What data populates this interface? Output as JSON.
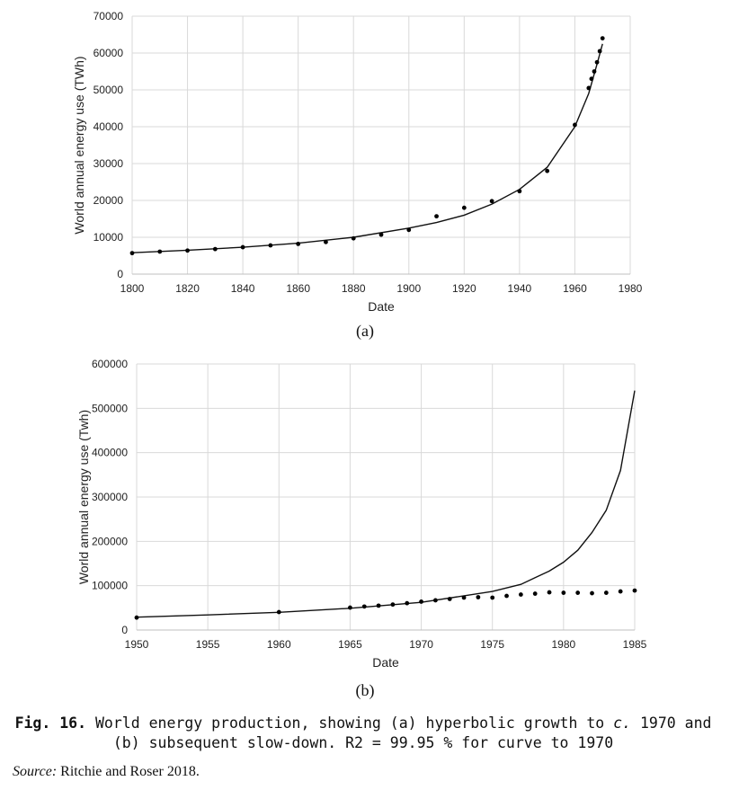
{
  "chart_data": [
    {
      "type": "scatter",
      "panel_label": "(a)",
      "xlabel": "Date",
      "ylabel": "World annual energy use (TWh)",
      "xlim": [
        1800,
        1980
      ],
      "ylim": [
        0,
        70000
      ],
      "x_ticks": [
        1800,
        1820,
        1840,
        1860,
        1880,
        1900,
        1920,
        1940,
        1960,
        1980
      ],
      "y_ticks": [
        0,
        10000,
        20000,
        30000,
        40000,
        50000,
        60000,
        70000
      ],
      "grid": true,
      "points": {
        "x": [
          1800,
          1810,
          1820,
          1830,
          1840,
          1850,
          1860,
          1870,
          1880,
          1890,
          1900,
          1910,
          1920,
          1930,
          1940,
          1950,
          1960,
          1965,
          1966,
          1967,
          1968,
          1969,
          1970
        ],
        "y": [
          5700,
          6100,
          6400,
          6800,
          7300,
          7800,
          8200,
          8700,
          9700,
          10700,
          12000,
          15700,
          18000,
          19800,
          22500,
          28000,
          40500,
          50500,
          53000,
          55000,
          57500,
          60500,
          64000
        ]
      },
      "fit_curve": {
        "x": [
          1800,
          1820,
          1840,
          1860,
          1880,
          1900,
          1910,
          1920,
          1930,
          1940,
          1950,
          1960,
          1965,
          1968,
          1970
        ],
        "y": [
          5800,
          6500,
          7300,
          8400,
          10000,
          12500,
          14000,
          16000,
          19000,
          23000,
          29000,
          40000,
          49000,
          57000,
          62500
        ]
      }
    },
    {
      "type": "scatter",
      "panel_label": "(b)",
      "xlabel": "Date",
      "ylabel": "World annual energy use (Twh)",
      "xlim": [
        1950,
        1985
      ],
      "ylim": [
        0,
        600000
      ],
      "x_ticks": [
        1950,
        1955,
        1960,
        1965,
        1970,
        1975,
        1980,
        1985
      ],
      "y_ticks": [
        0,
        100000,
        200000,
        300000,
        400000,
        500000,
        600000
      ],
      "grid": true,
      "points": {
        "x": [
          1950,
          1960,
          1965,
          1966,
          1967,
          1968,
          1969,
          1970,
          1971,
          1972,
          1973,
          1974,
          1975,
          1976,
          1977,
          1978,
          1979,
          1980,
          1981,
          1982,
          1983,
          1984,
          1985
        ],
        "y": [
          28000,
          40500,
          50500,
          53000,
          55000,
          57500,
          60500,
          64000,
          67000,
          70000,
          73000,
          74000,
          73000,
          77000,
          80000,
          82000,
          85000,
          84000,
          84000,
          83000,
          84000,
          87000,
          89000
        ]
      },
      "fit_curve": {
        "x": [
          1950,
          1955,
          1960,
          1965,
          1970,
          1975,
          1977,
          1978,
          1979,
          1980,
          1981,
          1982,
          1983,
          1984,
          1985
        ],
        "y": [
          29000,
          34000,
          40000,
          49000,
          62500,
          87000,
          103000,
          118000,
          133000,
          153000,
          180000,
          220000,
          270000,
          360000,
          540000
        ]
      }
    }
  ],
  "caption": {
    "fig_no": "Fig. 16.",
    "line1_pre": " World energy production, showing (a) hyperbolic growth to ",
    "line1_italic": "c.",
    "line1_post": " 1970 and",
    "line2": "(b) subsequent slow-down. R2 = 99.95 % for curve to 1970"
  },
  "source": {
    "label": "Source:",
    "text": " Ritchie and Roser 2018."
  }
}
